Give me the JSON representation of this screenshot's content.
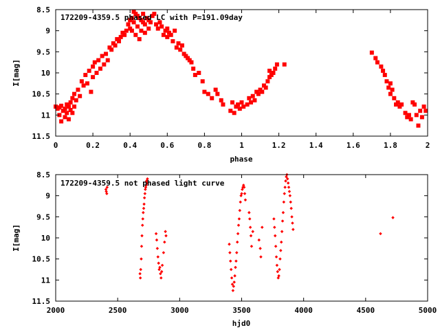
{
  "chart_data": [
    {
      "type": "scatter",
      "title": "172209-4359.5 phased LC with P=191.09day",
      "xlabel": "phase",
      "ylabel": "I[mag]",
      "xlim": [
        0,
        2
      ],
      "ylim": [
        11.5,
        8.5
      ],
      "y_inverted": true,
      "grid": false,
      "marker_color": "#ff0000",
      "marker": "filled-square",
      "x_ticks": [
        "0",
        "0.2",
        "0.4",
        "0.6",
        "0.8",
        "1",
        "1.2",
        "1.4",
        "1.6",
        "1.8",
        "2"
      ],
      "y_ticks": [
        "8.5",
        "9",
        "9.5",
        "10",
        "10.5",
        "11",
        "11.5"
      ],
      "points": [
        [
          0.0,
          10.8
        ],
        [
          0.01,
          10.85
        ],
        [
          0.02,
          10.82
        ],
        [
          0.02,
          11.0
        ],
        [
          0.03,
          10.78
        ],
        [
          0.03,
          11.15
        ],
        [
          0.04,
          10.9
        ],
        [
          0.05,
          10.85
        ],
        [
          0.05,
          11.05
        ],
        [
          0.06,
          10.75
        ],
        [
          0.06,
          10.95
        ],
        [
          0.07,
          10.8
        ],
        [
          0.07,
          11.1
        ],
        [
          0.08,
          10.7
        ],
        [
          0.08,
          10.88
        ],
        [
          0.09,
          10.6
        ],
        [
          0.09,
          10.95
        ],
        [
          0.1,
          10.5
        ],
        [
          0.1,
          10.8
        ],
        [
          0.11,
          10.65
        ],
        [
          0.12,
          10.4
        ],
        [
          0.13,
          10.55
        ],
        [
          0.14,
          10.2
        ],
        [
          0.15,
          10.3
        ],
        [
          0.16,
          10.05
        ],
        [
          0.17,
          10.25
        ],
        [
          0.18,
          9.95
        ],
        [
          0.19,
          10.45
        ],
        [
          0.2,
          9.85
        ],
        [
          0.2,
          10.1
        ],
        [
          0.21,
          9.75
        ],
        [
          0.22,
          10.0
        ],
        [
          0.23,
          9.7
        ],
        [
          0.24,
          9.9
        ],
        [
          0.25,
          9.6
        ],
        [
          0.26,
          9.8
        ],
        [
          0.27,
          9.55
        ],
        [
          0.28,
          9.7
        ],
        [
          0.29,
          9.4
        ],
        [
          0.3,
          9.45
        ],
        [
          0.31,
          9.3
        ],
        [
          0.32,
          9.35
        ],
        [
          0.33,
          9.2
        ],
        [
          0.34,
          9.25
        ],
        [
          0.35,
          9.15
        ],
        [
          0.36,
          9.05
        ],
        [
          0.37,
          9.1
        ],
        [
          0.38,
          9.0
        ],
        [
          0.39,
          8.85
        ],
        [
          0.4,
          8.95
        ],
        [
          0.4,
          8.75
        ],
        [
          0.41,
          8.7
        ],
        [
          0.41,
          9.0
        ],
        [
          0.42,
          8.55
        ],
        [
          0.42,
          8.8
        ],
        [
          0.43,
          8.6
        ],
        [
          0.43,
          9.1
        ],
        [
          0.44,
          8.65
        ],
        [
          0.44,
          8.9
        ],
        [
          0.45,
          8.7
        ],
        [
          0.45,
          9.2
        ],
        [
          0.46,
          8.75
        ],
        [
          0.46,
          9.0
        ],
        [
          0.47,
          8.8
        ],
        [
          0.47,
          8.6
        ],
        [
          0.48,
          8.85
        ],
        [
          0.48,
          9.05
        ],
        [
          0.49,
          8.7
        ],
        [
          0.5,
          8.75
        ],
        [
          0.5,
          8.95
        ],
        [
          0.51,
          8.8
        ],
        [
          0.52,
          8.65
        ],
        [
          0.53,
          8.6
        ],
        [
          0.54,
          8.85
        ],
        [
          0.55,
          8.95
        ],
        [
          0.56,
          8.8
        ],
        [
          0.57,
          8.9
        ],
        [
          0.58,
          9.1
        ],
        [
          0.59,
          9.0
        ],
        [
          0.6,
          8.95
        ],
        [
          0.6,
          9.15
        ],
        [
          0.61,
          9.05
        ],
        [
          0.62,
          9.1
        ],
        [
          0.63,
          9.25
        ],
        [
          0.64,
          9.0
        ],
        [
          0.65,
          9.4
        ],
        [
          0.66,
          9.3
        ],
        [
          0.67,
          9.45
        ],
        [
          0.68,
          9.35
        ],
        [
          0.69,
          9.55
        ],
        [
          0.7,
          9.6
        ],
        [
          0.71,
          9.65
        ],
        [
          0.72,
          9.7
        ],
        [
          0.73,
          9.75
        ],
        [
          0.74,
          9.9
        ],
        [
          0.75,
          10.05
        ],
        [
          0.77,
          10.0
        ],
        [
          0.79,
          10.2
        ],
        [
          0.8,
          10.45
        ],
        [
          0.82,
          10.5
        ],
        [
          0.84,
          10.6
        ],
        [
          0.86,
          10.4
        ],
        [
          0.87,
          10.5
        ],
        [
          0.89,
          10.65
        ],
        [
          0.9,
          10.75
        ],
        [
          0.94,
          10.9
        ],
        [
          0.95,
          10.7
        ],
        [
          0.96,
          10.95
        ],
        [
          0.97,
          10.8
        ],
        [
          0.98,
          10.75
        ],
        [
          0.99,
          10.85
        ],
        [
          1.0,
          10.7
        ],
        [
          1.01,
          10.8
        ],
        [
          1.03,
          10.75
        ],
        [
          1.04,
          10.6
        ],
        [
          1.05,
          10.7
        ],
        [
          1.06,
          10.55
        ],
        [
          1.07,
          10.65
        ],
        [
          1.08,
          10.45
        ],
        [
          1.09,
          10.5
        ],
        [
          1.1,
          10.4
        ],
        [
          1.11,
          10.45
        ],
        [
          1.12,
          10.3
        ],
        [
          1.13,
          10.35
        ],
        [
          1.14,
          10.2
        ],
        [
          1.15,
          10.1
        ],
        [
          1.15,
          9.95
        ],
        [
          1.16,
          10.05
        ],
        [
          1.17,
          10.0
        ],
        [
          1.18,
          9.9
        ],
        [
          1.19,
          9.8
        ],
        [
          1.23,
          9.8
        ],
        [
          1.7,
          9.52
        ],
        [
          1.72,
          9.65
        ],
        [
          1.73,
          9.75
        ],
        [
          1.75,
          9.85
        ],
        [
          1.76,
          9.95
        ],
        [
          1.77,
          10.05
        ],
        [
          1.78,
          10.2
        ],
        [
          1.79,
          10.35
        ],
        [
          1.8,
          10.25
        ],
        [
          1.8,
          10.5
        ],
        [
          1.81,
          10.4
        ],
        [
          1.82,
          10.6
        ],
        [
          1.83,
          10.75
        ],
        [
          1.84,
          10.7
        ],
        [
          1.85,
          10.8
        ],
        [
          1.86,
          10.75
        ],
        [
          1.88,
          10.95
        ],
        [
          1.89,
          11.05
        ],
        [
          1.9,
          11.0
        ],
        [
          1.91,
          11.1
        ],
        [
          1.92,
          10.7
        ],
        [
          1.93,
          10.75
        ],
        [
          1.94,
          11.0
        ],
        [
          1.95,
          11.25
        ],
        [
          1.96,
          10.9
        ],
        [
          1.97,
          11.05
        ],
        [
          1.98,
          10.8
        ],
        [
          1.99,
          10.9
        ]
      ]
    },
    {
      "type": "scatter",
      "title": "172209-4359.5 not phased light curve",
      "xlabel": "hjd0",
      "ylabel": "I[mag]",
      "xlim": [
        2000,
        5000
      ],
      "ylim": [
        11.5,
        8.5
      ],
      "y_inverted": true,
      "grid": false,
      "marker_color": "#ff0000",
      "marker": "small-diamond",
      "x_ticks": [
        "2000",
        "2500",
        "3000",
        "3500",
        "4000",
        "4500",
        "5000"
      ],
      "y_ticks": [
        "8.5",
        "9",
        "9.5",
        "10",
        "10.5",
        "11",
        "11.5"
      ],
      "points": [
        [
          2405,
          8.85
        ],
        [
          2408,
          8.9
        ],
        [
          2412,
          8.95
        ],
        [
          2415,
          8.8
        ],
        [
          2680,
          10.85
        ],
        [
          2683,
          10.95
        ],
        [
          2686,
          10.75
        ],
        [
          2690,
          10.5
        ],
        [
          2693,
          10.2
        ],
        [
          2696,
          9.95
        ],
        [
          2700,
          9.7
        ],
        [
          2703,
          9.55
        ],
        [
          2706,
          9.4
        ],
        [
          2710,
          9.3
        ],
        [
          2713,
          9.2
        ],
        [
          2716,
          9.05
        ],
        [
          2720,
          8.95
        ],
        [
          2723,
          8.85
        ],
        [
          2726,
          8.8
        ],
        [
          2730,
          8.75
        ],
        [
          2733,
          8.65
        ],
        [
          2737,
          8.7
        ],
        [
          2740,
          8.6
        ],
        [
          2810,
          9.9
        ],
        [
          2815,
          10.05
        ],
        [
          2820,
          10.25
        ],
        [
          2825,
          10.45
        ],
        [
          2830,
          10.6
        ],
        [
          2835,
          10.75
        ],
        [
          2840,
          10.7
        ],
        [
          2845,
          10.85
        ],
        [
          2850,
          10.95
        ],
        [
          2855,
          10.8
        ],
        [
          2860,
          10.65
        ],
        [
          2870,
          10.35
        ],
        [
          2878,
          10.1
        ],
        [
          2885,
          9.85
        ],
        [
          2890,
          9.95
        ],
        [
          3400,
          10.15
        ],
        [
          3405,
          10.35
        ],
        [
          3410,
          10.55
        ],
        [
          3415,
          10.75
        ],
        [
          3420,
          10.95
        ],
        [
          3425,
          11.1
        ],
        [
          3430,
          11.25
        ],
        [
          3435,
          11.15
        ],
        [
          3440,
          11.05
        ],
        [
          3445,
          10.9
        ],
        [
          3450,
          10.7
        ],
        [
          3455,
          10.55
        ],
        [
          3460,
          10.35
        ],
        [
          3465,
          10.1
        ],
        [
          3470,
          9.9
        ],
        [
          3475,
          9.7
        ],
        [
          3480,
          9.55
        ],
        [
          3485,
          9.35
        ],
        [
          3490,
          9.15
        ],
        [
          3495,
          9.0
        ],
        [
          3500,
          8.95
        ],
        [
          3505,
          8.85
        ],
        [
          3510,
          8.8
        ],
        [
          3515,
          8.75
        ],
        [
          3520,
          8.8
        ],
        [
          3525,
          8.95
        ],
        [
          3530,
          9.1
        ],
        [
          3560,
          9.4
        ],
        [
          3565,
          9.55
        ],
        [
          3570,
          9.75
        ],
        [
          3575,
          9.95
        ],
        [
          3580,
          10.2
        ],
        [
          3590,
          9.85
        ],
        [
          3640,
          10.05
        ],
        [
          3650,
          10.25
        ],
        [
          3655,
          10.45
        ],
        [
          3665,
          9.75
        ],
        [
          3760,
          9.55
        ],
        [
          3765,
          9.75
        ],
        [
          3770,
          9.95
        ],
        [
          3775,
          10.2
        ],
        [
          3780,
          10.45
        ],
        [
          3785,
          10.65
        ],
        [
          3790,
          10.8
        ],
        [
          3795,
          10.95
        ],
        [
          3800,
          10.9
        ],
        [
          3805,
          10.75
        ],
        [
          3810,
          10.5
        ],
        [
          3815,
          10.3
        ],
        [
          3820,
          10.1
        ],
        [
          3825,
          9.85
        ],
        [
          3830,
          9.6
        ],
        [
          3835,
          9.4
        ],
        [
          3840,
          9.15
        ],
        [
          3845,
          8.95
        ],
        [
          3850,
          8.8
        ],
        [
          3855,
          8.65
        ],
        [
          3860,
          8.55
        ],
        [
          3865,
          8.5
        ],
        [
          3870,
          8.6
        ],
        [
          3875,
          8.7
        ],
        [
          3880,
          8.8
        ],
        [
          3885,
          8.9
        ],
        [
          3890,
          9.0
        ],
        [
          3895,
          9.15
        ],
        [
          3900,
          9.3
        ],
        [
          3905,
          9.5
        ],
        [
          3910,
          9.65
        ],
        [
          3915,
          9.8
        ],
        [
          4620,
          9.9
        ],
        [
          4720,
          9.52
        ]
      ]
    }
  ]
}
